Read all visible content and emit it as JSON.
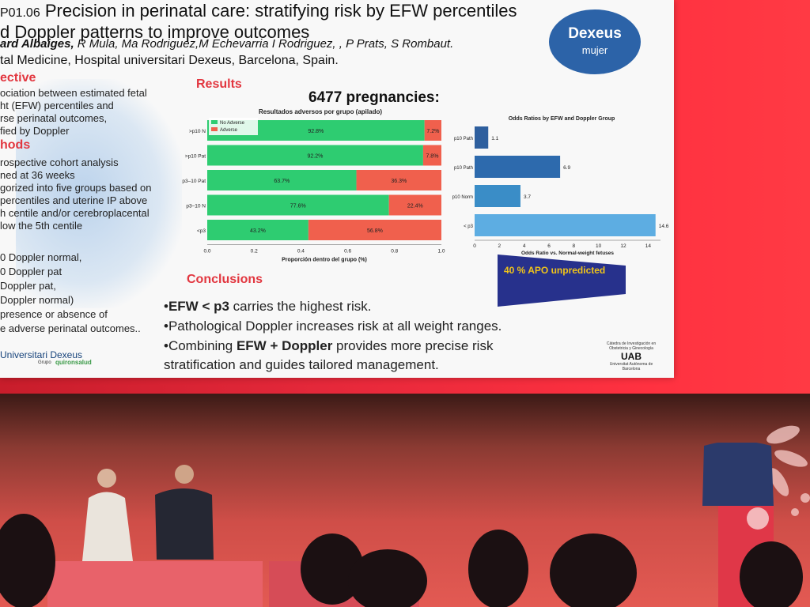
{
  "slide": {
    "code": "P01.06",
    "title_line1": "Precision in perinatal care: stratifying risk by EFW percentiles",
    "title_line2": "d Doppler patterns to improve outcomes",
    "authors_lead": "ard Albaiges,",
    "authors_rest": " R Mula, Ma Rodriguez,M Echevarria  I Rodriguez, , P Prats, S Rombaut.",
    "affiliation": "tal Medicine, Hospital universitari  Dexeus, Barcelona, Spain.",
    "logo_line1": "Dexeus",
    "logo_line2": "mujer",
    "sec_objective": "ective",
    "objective_lines": [
      "ociation between estimated fetal",
      "ht (EFW) percentiles and",
      "rse perinatal outcomes,",
      "fied by Doppler"
    ],
    "sec_methods": "hods",
    "methods_lines": [
      "rospective cohort analysis",
      "ned at 36 weeks",
      "gorized into five groups based on",
      "percentiles and uterine IP above",
      "h centile and/or cerebroplacental",
      "low the 5th centile"
    ],
    "group_lines": [
      "0 Doppler normal,",
      "0 Doppler pat",
      "Doppler pat,",
      "Doppler normal)",
      "presence or absence of",
      "e adverse perinatal outcomes.."
    ],
    "sec_results": "Results",
    "pregnancies": "6477 pregnancies:",
    "sec_conclusions": "Conclusions",
    "conclusions": [
      {
        "bold": "EFW < p3",
        "rest": " carries the highest risk."
      },
      {
        "bold": "",
        "rest": "Pathological Doppler increases risk at all weight ranges."
      },
      {
        "bold": "",
        "pre": "Combining ",
        "bold2": "EFW + Doppler",
        "rest": " provides more precise risk"
      },
      {
        "bold": "",
        "rest": "stratification and guides tailored management."
      }
    ],
    "footer_org": "Universitari Dexeus",
    "footer_group": "Grupo",
    "footer_brand": "quironsalud",
    "uab_top": "Càtedra de Investigación en Obstetricia y Ginecología",
    "uab_mark": "UAB",
    "uab_bottom": "Universitat Autònoma de Barcelona",
    "banner_text": "40 % APO unpredicted"
  },
  "colors": {
    "accent_red": "#e2363f",
    "no_adverse": "#2ecc71",
    "adverse": "#f0604d",
    "or_dark": "#2d6aad",
    "or_light": "#5dade2",
    "banner": "#27318c",
    "banner_text": "#f0c419"
  },
  "chart_data": [
    {
      "type": "bar",
      "orientation": "horizontal",
      "stacked": true,
      "title": "Resultados adversos por grupo (apilado)",
      "xlabel": "Proporción dentro del grupo (%)",
      "ylabel": "",
      "xlim": [
        0,
        1.0
      ],
      "xticks": [
        "0.0",
        "0.2",
        "0.4",
        "0.6",
        "0.8",
        "1.0"
      ],
      "categories": [
        ">p10 N",
        ">p10 Pat",
        "p3–10 Pat",
        "p3–10 N",
        "<p3"
      ],
      "series": [
        {
          "name": "No Adverse",
          "values": [
            0.928,
            0.922,
            0.637,
            0.776,
            0.432
          ],
          "labels": [
            "92.8%",
            "92.2%",
            "63.7%",
            "77.6%",
            "43.2%"
          ]
        },
        {
          "name": "Adverse",
          "values": [
            0.072,
            0.078,
            0.363,
            0.224,
            0.568
          ],
          "labels": [
            "7.2%",
            "7.8%",
            "36.3%",
            "22.4%",
            "56.8%"
          ]
        }
      ],
      "legend": "top-left"
    },
    {
      "type": "bar",
      "orientation": "horizontal",
      "title": "Odds Ratios by EFW and Doppler Group",
      "xlabel": "Odds Ratio vs. Normal-weight fetuses",
      "ylabel": "",
      "xlim": [
        0,
        15
      ],
      "xticks": [
        "0",
        "2",
        "4",
        "6",
        "8",
        "10",
        "12",
        "14"
      ],
      "categories": [
        "p10 Path",
        "p10 Path",
        "p10 Norm",
        "< p3"
      ],
      "values": [
        1.1,
        6.9,
        3.7,
        14.6
      ],
      "labels": [
        "1.1",
        "6.9",
        "3.7",
        "14.6"
      ]
    }
  ],
  "stage": {
    "people": [
      "moderator-woman",
      "moderator-man",
      "speaker-man"
    ]
  }
}
